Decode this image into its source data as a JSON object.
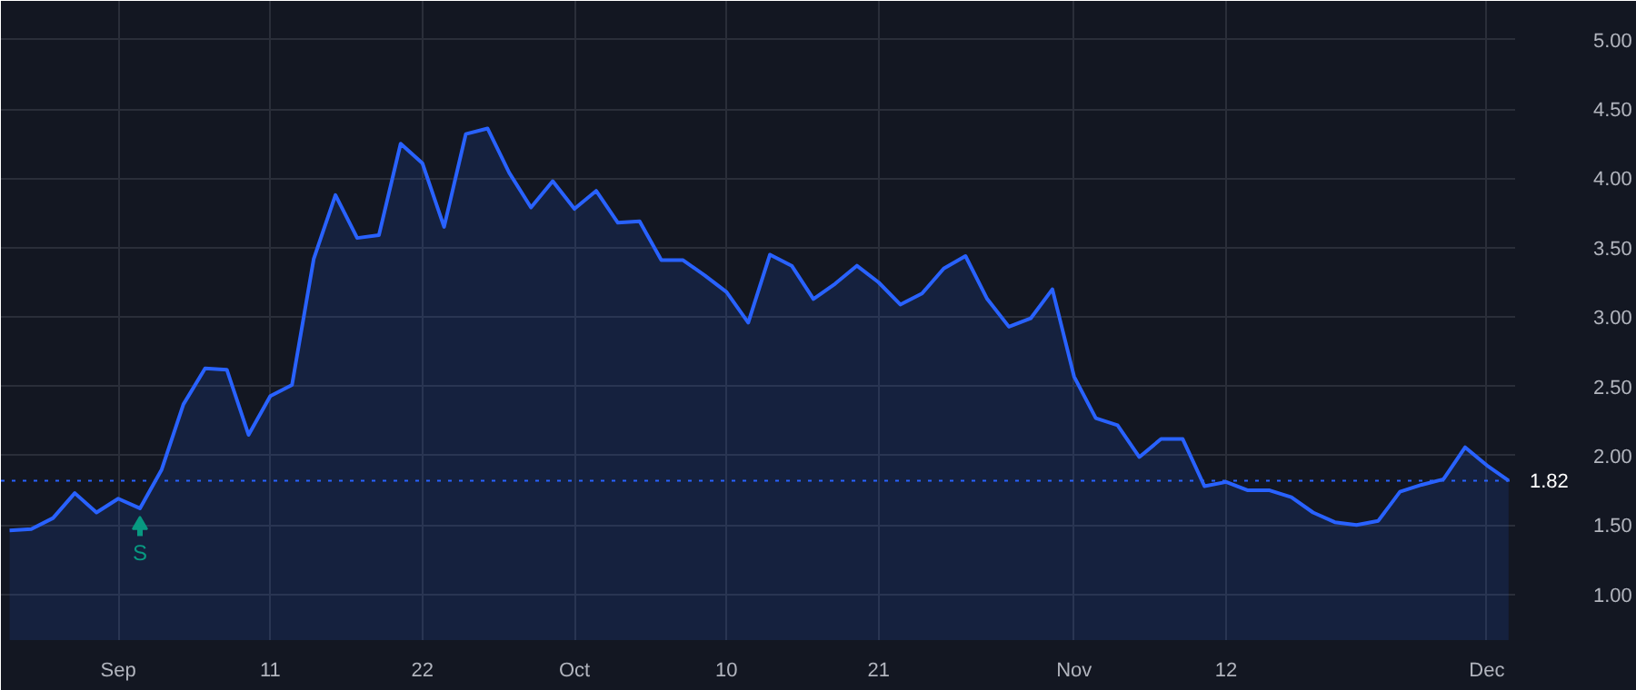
{
  "chart_data": {
    "type": "area",
    "categories": [
      null,
      null,
      null,
      null,
      null,
      "Sep",
      null,
      null,
      null,
      null,
      null,
      null,
      "11",
      null,
      null,
      null,
      null,
      null,
      null,
      "22",
      null,
      null,
      null,
      null,
      null,
      null,
      "Oct",
      null,
      null,
      null,
      null,
      null,
      null,
      "10",
      null,
      null,
      null,
      null,
      null,
      null,
      "21",
      null,
      null,
      null,
      null,
      null,
      null,
      null,
      null,
      "Nov",
      null,
      null,
      null,
      null,
      null,
      null,
      "12",
      null,
      null,
      null,
      null,
      null,
      null,
      null,
      null,
      null,
      null,
      null,
      "Dec",
      null
    ],
    "series": [
      {
        "color": "#2962ff",
        "values": [
          1.46,
          1.47,
          1.55,
          1.73,
          1.59,
          1.69,
          1.62,
          1.9,
          2.37,
          2.63,
          2.62,
          2.15,
          2.43,
          2.51,
          3.42,
          3.88,
          3.57,
          3.59,
          4.25,
          4.11,
          3.65,
          4.32,
          4.36,
          4.04,
          3.79,
          3.98,
          3.78,
          3.91,
          3.68,
          3.69,
          3.41,
          3.41,
          3.3,
          3.18,
          2.96,
          3.45,
          3.37,
          3.13,
          3.24,
          3.37,
          3.25,
          3.09,
          3.17,
          3.35,
          3.44,
          3.13,
          2.93,
          2.99,
          3.2,
          2.57,
          2.27,
          2.22,
          1.99,
          2.12,
          2.12,
          1.78,
          1.81,
          1.75,
          1.75,
          1.7,
          1.59,
          1.52,
          1.5,
          1.53,
          1.74,
          1.79,
          1.83,
          2.06,
          1.93,
          1.82
        ]
      }
    ],
    "ylim": [
      0.67,
      5.28
    ],
    "yticks": [
      {
        "value": 1,
        "label": "1.00"
      },
      {
        "value": 1.5,
        "label": "1.50"
      },
      {
        "value": 2,
        "label": "2.00"
      },
      {
        "value": 2.5,
        "label": "2.50"
      },
      {
        "value": 3,
        "label": "3.00"
      },
      {
        "value": 3.5,
        "label": "3.50"
      },
      {
        "value": 4,
        "label": "4.00"
      },
      {
        "value": 4.5,
        "label": "4.50"
      },
      {
        "value": 5,
        "label": "5.00"
      }
    ],
    "ref_lines": [
      {
        "axis": "y",
        "value": 1.82,
        "label": "1.82",
        "color": "#2962ff",
        "line_style": "dotted"
      }
    ],
    "annotations": [
      {
        "text": "S",
        "y": 1.62
      }
    ],
    "grid": true,
    "line_style": "solid"
  }
}
